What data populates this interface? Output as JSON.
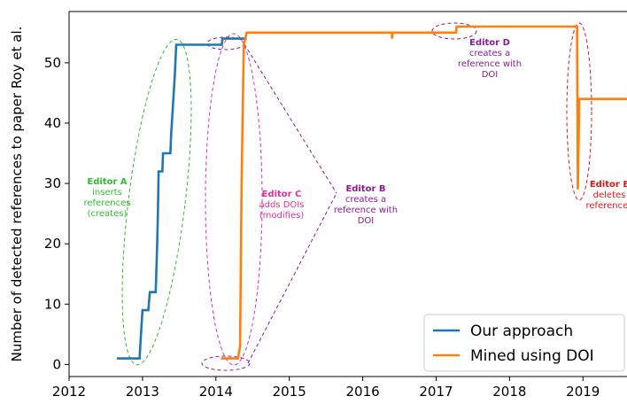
{
  "chart_data": {
    "type": "line",
    "xlabel": "",
    "ylabel": "Number of detected references to paper Roy et al.",
    "xlim": [
      2012,
      2019.6
    ],
    "ylim": [
      -2,
      58.5
    ],
    "x_ticks": [
      "2012",
      "2013",
      "2014",
      "2015",
      "2016",
      "2017",
      "2018",
      "2019"
    ],
    "y_ticks": [
      "0",
      "10",
      "20",
      "30",
      "40",
      "50"
    ],
    "grid": false,
    "legend_position": "bottom-right",
    "series": [
      {
        "name": "Our approach",
        "color": "#1f77b4",
        "points": [
          [
            2012.65,
            1
          ],
          [
            2012.96,
            1
          ],
          [
            2012.98,
            5
          ],
          [
            2013.0,
            9
          ],
          [
            2013.08,
            9
          ],
          [
            2013.1,
            12
          ],
          [
            2013.18,
            12
          ],
          [
            2013.2,
            20
          ],
          [
            2013.21,
            25
          ],
          [
            2013.22,
            32
          ],
          [
            2013.27,
            32
          ],
          [
            2013.28,
            35
          ],
          [
            2013.38,
            35
          ],
          [
            2013.39,
            38
          ],
          [
            2013.41,
            42
          ],
          [
            2013.44,
            48
          ],
          [
            2013.46,
            53
          ],
          [
            2014.08,
            53
          ],
          [
            2014.09,
            54
          ],
          [
            2014.42,
            54
          ]
        ]
      },
      {
        "name": "Mined using DOI",
        "color": "#ff7f0e",
        "points": [
          [
            2014.07,
            1
          ],
          [
            2014.3,
            1
          ],
          [
            2014.33,
            3
          ],
          [
            2014.35,
            30
          ],
          [
            2014.38,
            53
          ],
          [
            2014.42,
            55
          ],
          [
            2016.4,
            55
          ],
          [
            2016.4,
            54
          ],
          [
            2016.41,
            55
          ],
          [
            2017.27,
            55
          ],
          [
            2017.28,
            56
          ],
          [
            2018.92,
            56
          ],
          [
            2018.93,
            29
          ],
          [
            2018.95,
            44
          ],
          [
            2019.6,
            44
          ]
        ]
      }
    ],
    "annotations": [
      {
        "title": "Editor A",
        "lines": [
          "inserts",
          "references",
          "(creates)"
        ],
        "color": "#2cbd2c"
      },
      {
        "title": "Editor C",
        "lines": [
          "adds DOIs",
          "(modifies)"
        ],
        "color": "#e0309a"
      },
      {
        "title": "Editor B",
        "lines": [
          "creates a",
          "reference with",
          "DOI"
        ],
        "color": "#8b1a9a"
      },
      {
        "title": "Editor D",
        "lines": [
          "creates a",
          "reference with",
          "DOI"
        ],
        "color": "#8b1a9a"
      },
      {
        "title": "Editor E",
        "lines": [
          "deletes",
          "references"
        ],
        "color": "#e01818"
      }
    ]
  }
}
